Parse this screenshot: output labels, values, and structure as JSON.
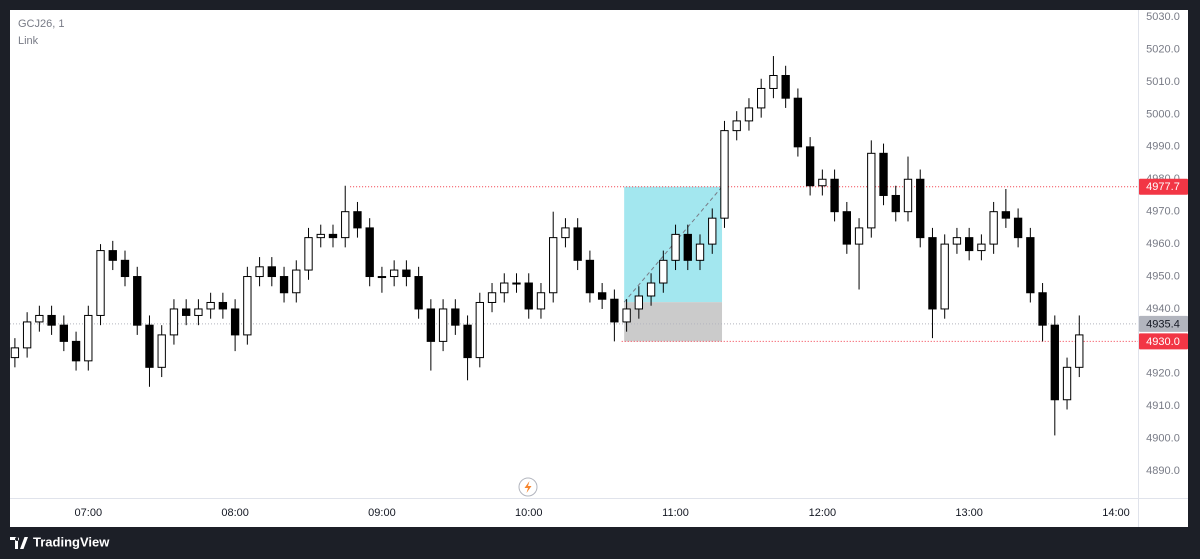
{
  "chart_data": {
    "type": "candlestick",
    "title": "GCJ26, 1",
    "subtitle": "Link",
    "brand": "TradingView",
    "x": [
      390,
      395,
      400,
      405,
      410,
      415,
      420,
      425,
      430,
      435,
      440,
      445,
      450,
      455,
      460,
      465,
      470,
      475,
      480,
      485,
      490,
      495,
      500,
      505,
      510,
      515,
      520,
      525,
      530,
      535,
      540,
      545,
      550,
      555,
      560,
      565,
      570,
      575,
      580,
      585,
      590,
      595,
      600,
      605,
      610,
      615,
      620,
      625,
      630,
      635,
      640,
      645,
      650,
      655,
      660,
      665,
      670,
      675,
      680,
      685,
      690,
      695,
      700,
      705,
      710,
      715,
      720,
      725,
      730,
      735,
      740,
      745,
      750,
      755,
      760,
      765,
      770,
      775,
      780,
      785,
      790,
      795,
      800,
      805,
      810,
      815,
      820,
      825
    ],
    "open": [
      4925,
      4928,
      4936,
      4938,
      4935,
      4930,
      4924,
      4938,
      4958,
      4955,
      4950,
      4935,
      4922,
      4932,
      4940,
      4938,
      4940,
      4942,
      4940,
      4932,
      4950,
      4953,
      4950,
      4945,
      4952,
      4962,
      4963,
      4962,
      4970,
      4965,
      4950,
      4950,
      4952,
      4950,
      4940,
      4930,
      4940,
      4935,
      4925,
      4942,
      4945,
      4948,
      4948,
      4940,
      4945,
      4962,
      4965,
      4955,
      4945,
      4943,
      4936,
      4940,
      4944,
      4948,
      4955,
      4963,
      4955,
      4960,
      4968,
      4995,
      4998,
      5002,
      5008,
      5012,
      5005,
      4990,
      4978,
      4980,
      4970,
      4960,
      4965,
      4988,
      4975,
      4970,
      4980,
      4962,
      4940,
      4960,
      4962,
      4958,
      4960,
      4970,
      4968,
      4962,
      4945,
      4935,
      4912,
      4922
    ],
    "high": [
      4931,
      4939,
      4941,
      4941,
      4938,
      4933,
      4941,
      4960,
      4961,
      4958,
      4953,
      4938,
      4935,
      4943,
      4943,
      4943,
      4945,
      4945,
      4943,
      4953,
      4956,
      4956,
      4953,
      4955,
      4965,
      4966,
      4966,
      4978,
      4973,
      4968,
      4953,
      4955,
      4955,
      4953,
      4943,
      4943,
      4943,
      4938,
      4945,
      4948,
      4951,
      4951,
      4951,
      4948,
      4970,
      4968,
      4968,
      4958,
      4948,
      4946,
      4943,
      4947,
      4951,
      4958,
      4966,
      4966,
      4963,
      4971,
      4998,
      5001,
      5005,
      5011,
      5018,
      5015,
      5008,
      4993,
      4983,
      4983,
      4973,
      4968,
      4992,
      4991,
      4978,
      4987,
      4983,
      4965,
      4963,
      4965,
      4965,
      4963,
      4973,
      4977,
      4971,
      4965,
      4948,
      4938,
      4925,
      4938
    ],
    "low": [
      4922,
      4925,
      4933,
      4932,
      4927,
      4921,
      4921,
      4935,
      4952,
      4947,
      4932,
      4916,
      4919,
      4929,
      4935,
      4935,
      4937,
      4937,
      4927,
      4929,
      4947,
      4947,
      4942,
      4942,
      4949,
      4959,
      4959,
      4959,
      4962,
      4947,
      4945,
      4947,
      4947,
      4937,
      4921,
      4927,
      4932,
      4918,
      4922,
      4939,
      4942,
      4945,
      4937,
      4937,
      4942,
      4959,
      4952,
      4942,
      4940,
      4930,
      4933,
      4937,
      4941,
      4945,
      4952,
      4952,
      4952,
      4957,
      4965,
      4992,
      4995,
      4999,
      5005,
      5002,
      4987,
      4975,
      4975,
      4967,
      4957,
      4946,
      4962,
      4972,
      4967,
      4967,
      4959,
      4931,
      4937,
      4957,
      4955,
      4955,
      4957,
      4965,
      4959,
      4942,
      4930,
      4901,
      4909,
      4919
    ],
    "close": [
      4928,
      4936,
      4938,
      4935,
      4930,
      4924,
      4938,
      4958,
      4955,
      4950,
      4935,
      4922,
      4932,
      4940,
      4938,
      4940,
      4942,
      4940,
      4932,
      4950,
      4953,
      4950,
      4945,
      4952,
      4962,
      4963,
      4962,
      4970,
      4965,
      4950,
      4950,
      4952,
      4950,
      4940,
      4930,
      4940,
      4935,
      4925,
      4942,
      4945,
      4948,
      4948,
      4940,
      4945,
      4962,
      4965,
      4955,
      4945,
      4943,
      4936,
      4940,
      4944,
      4948,
      4955,
      4963,
      4955,
      4960,
      4968,
      4995,
      4998,
      5002,
      5008,
      5012,
      5005,
      4990,
      4978,
      4980,
      4970,
      4960,
      4965,
      4988,
      4975,
      4970,
      4980,
      4962,
      4940,
      4960,
      4962,
      4958,
      4960,
      4970,
      4968,
      4962,
      4945,
      4935,
      4912,
      4922,
      4932
    ],
    "up_color": "#ffffff",
    "down_color": "#000000",
    "wick_color": "#000000",
    "xlim": [
      388,
      849
    ],
    "xticks": [
      {
        "value": 420,
        "label": "07:00"
      },
      {
        "value": 480,
        "label": "08:00"
      },
      {
        "value": 540,
        "label": "09:00"
      },
      {
        "value": 600,
        "label": "10:00"
      },
      {
        "value": 660,
        "label": "11:00"
      },
      {
        "value": 720,
        "label": "12:00"
      },
      {
        "value": 780,
        "label": "13:00"
      },
      {
        "value": 840,
        "label": "14:00"
      }
    ],
    "ylim": [
      4881.7,
      5032.2
    ],
    "yticks": [
      {
        "value": 4890,
        "label": "4890.0"
      },
      {
        "value": 4900,
        "label": "4900.0"
      },
      {
        "value": 4910,
        "label": "4910.0"
      },
      {
        "value": 4920,
        "label": "4920.0"
      },
      {
        "value": 4930,
        "label": "4930.0"
      },
      {
        "value": 4940,
        "label": "4940.0"
      },
      {
        "value": 4950,
        "label": "4950.0"
      },
      {
        "value": 4960,
        "label": "4960.0"
      },
      {
        "value": 4970,
        "label": "4970.0"
      },
      {
        "value": 4980,
        "label": "4980.0"
      },
      {
        "value": 4990,
        "label": "4990.0"
      },
      {
        "value": 5000,
        "label": "5000.0"
      },
      {
        "value": 5010,
        "label": "5010.0"
      },
      {
        "value": 5020,
        "label": "5020.0"
      },
      {
        "value": 5030,
        "label": "5030.0"
      }
    ],
    "grid": false,
    "price_lines": [
      {
        "value": 4977.7,
        "label": "4977.7",
        "start": 527,
        "color": "#f23645",
        "text_color": "#ffffff"
      },
      {
        "value": 4935.4,
        "label": "4935.4",
        "color": "#b2b5be",
        "text_color": "#131722"
      },
      {
        "value": 4930,
        "label": "4930.0",
        "start": 638,
        "color": "#f23645",
        "text_color": "#ffffff"
      }
    ],
    "position": {
      "x_start": 639,
      "x_end": 679,
      "entry": 4942.1,
      "target": 4977.7,
      "stop": 4930,
      "profit_color": "#a3e7ef",
      "loss_color": "#cbcbcb"
    }
  }
}
